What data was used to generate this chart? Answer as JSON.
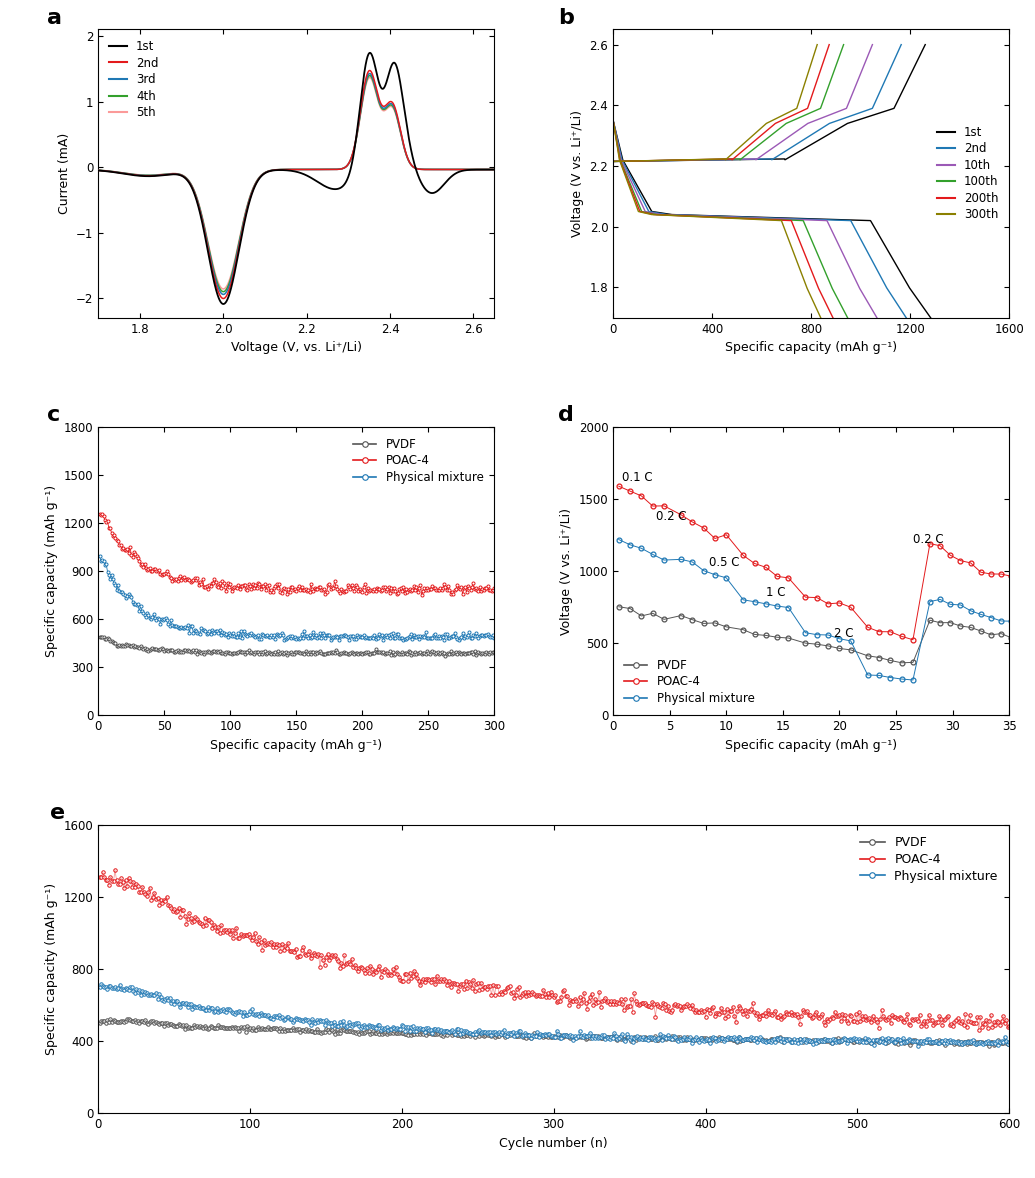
{
  "panel_a": {
    "label": "a",
    "xlabel": "Voltage (V, vs. Li⁺/Li)",
    "ylabel": "Current (mA)",
    "xlim": [
      1.7,
      2.65
    ],
    "ylim": [
      -2.3,
      2.1
    ],
    "yticks": [
      -2,
      -1,
      0,
      1,
      2
    ],
    "xticks": [
      1.8,
      2.0,
      2.2,
      2.4,
      2.6
    ],
    "cycles": [
      "1st",
      "2nd",
      "3rd",
      "4th",
      "5th"
    ],
    "colors": [
      "black",
      "#e31a1c",
      "#1f78b4",
      "#33a02c",
      "#fb9a99"
    ]
  },
  "panel_b": {
    "label": "b",
    "xlabel": "Specific capacity (mAh g⁻¹)",
    "ylabel": "Voltage (V vs. Li⁺/Li)",
    "xlim": [
      0,
      1600
    ],
    "ylim": [
      1.7,
      2.65
    ],
    "yticks": [
      1.8,
      2.0,
      2.2,
      2.4,
      2.6
    ],
    "xticks": [
      0,
      400,
      800,
      1200,
      1600
    ],
    "cycles": [
      "1st",
      "2nd",
      "10th",
      "100th",
      "200th",
      "300th"
    ],
    "colors": [
      "black",
      "#1f78b4",
      "#9b59b6",
      "#33a02c",
      "#e31a1c",
      "#8B8000"
    ],
    "capacities": [
      1300,
      1200,
      1080,
      960,
      900,
      850
    ]
  },
  "panel_c": {
    "label": "c",
    "xlabel": "Specific capacity (mAh g⁻¹)",
    "ylabel": "Specific capacity (mAh g⁻¹)",
    "xlim": [
      0,
      300
    ],
    "ylim": [
      0,
      1800
    ],
    "yticks": [
      0,
      300,
      600,
      900,
      1200,
      1500,
      1800
    ],
    "xticks": [
      0,
      50,
      100,
      150,
      200,
      250,
      300
    ],
    "series": [
      "PVDF",
      "POAC-4",
      "Physical mixture"
    ],
    "colors": [
      "#555555",
      "#e31a1c",
      "#1f78b4"
    ],
    "init_caps": [
      490,
      1280,
      1000
    ],
    "final_caps": [
      390,
      790,
      490
    ]
  },
  "panel_d": {
    "label": "d",
    "xlabel": "Specific capacity (mAh g⁻¹)",
    "ylabel": "Voltage (V vs. Li⁺/Li)",
    "xlim": [
      0,
      35
    ],
    "ylim": [
      0,
      2000
    ],
    "yticks": [
      0,
      500,
      1000,
      1500,
      2000
    ],
    "xticks": [
      0,
      5,
      10,
      15,
      20,
      25,
      30,
      35
    ],
    "series": [
      "PVDF",
      "POAC-4",
      "Physical mixture"
    ],
    "colors": [
      "#555555",
      "#e31a1c",
      "#1f78b4"
    ],
    "rate_labels": [
      "0.1 C",
      "0.2 C",
      "0.5 C",
      "1 C",
      "2 C",
      "0.2 C"
    ],
    "rate_x": [
      0.8,
      3.8,
      8.5,
      13.5,
      19.5,
      26.5
    ],
    "rate_y": [
      1650,
      1380,
      1060,
      850,
      570,
      1220
    ],
    "pvdf_caps": [
      750,
      690,
      600,
      510,
      410,
      680
    ],
    "poac_caps": [
      1600,
      1380,
      1080,
      840,
      600,
      1200
    ],
    "phys_caps": [
      1220,
      1080,
      820,
      580,
      280,
      820
    ],
    "n_per_rate": [
      5,
      5,
      5,
      5,
      5,
      10
    ]
  },
  "panel_e": {
    "label": "e",
    "xlabel": "Cycle number (n)",
    "ylabel": "Specific capacity (mAh g⁻¹)",
    "xlim": [
      0,
      600
    ],
    "ylim": [
      0,
      1600
    ],
    "yticks": [
      0,
      400,
      800,
      1200,
      1600
    ],
    "xticks": [
      0,
      100,
      200,
      300,
      400,
      500,
      600
    ],
    "series": [
      "PVDF",
      "POAC-4",
      "Physical mixture"
    ],
    "colors": [
      "#555555",
      "#e31a1c",
      "#1f78b4"
    ],
    "pvdf_init": 500,
    "pvdf_final": 360,
    "poac_init": 1300,
    "poac_final": 460,
    "phys_init": 700,
    "phys_final": 390
  }
}
